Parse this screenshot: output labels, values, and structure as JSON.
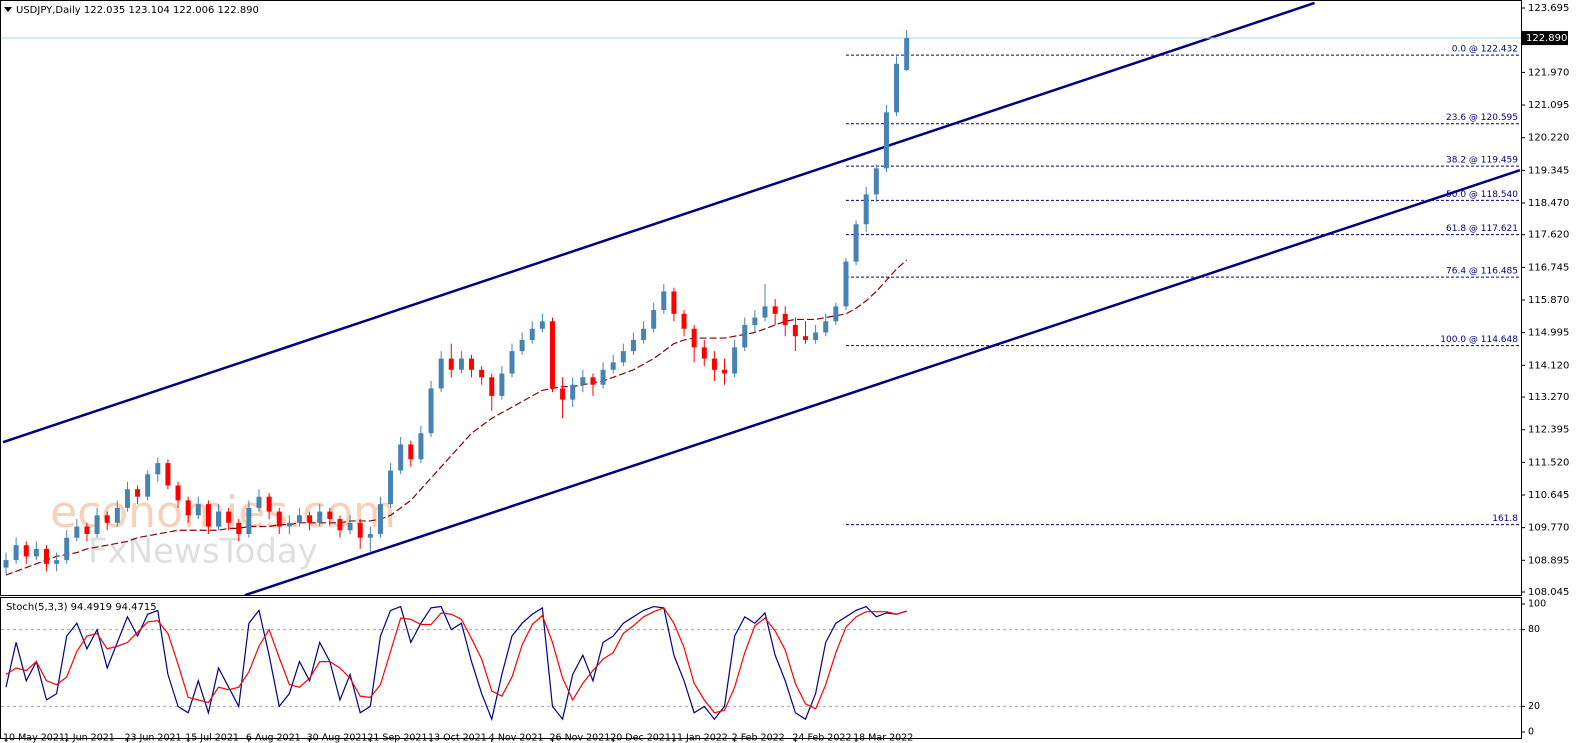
{
  "chart_data": {
    "type": "candlestick",
    "title": "USDJPY,Daily",
    "last_quote_labels": [
      "122.035",
      "123.104",
      "122.006",
      "122.890"
    ],
    "categories": [
      "10 May 2021",
      null,
      null,
      null,
      null,
      null,
      "1 Jun 2021",
      null,
      null,
      null,
      null,
      null,
      "23 Jun 2021",
      null,
      null,
      null,
      null,
      null,
      "15 Jul 2021",
      null,
      null,
      null,
      null,
      null,
      "6 Aug 2021",
      null,
      null,
      null,
      null,
      null,
      "30 Aug 2021",
      null,
      null,
      null,
      null,
      null,
      "21 Sep 2021",
      null,
      null,
      null,
      null,
      null,
      "13 Oct 2021",
      null,
      null,
      null,
      null,
      null,
      "4 Nov 2021",
      null,
      null,
      null,
      null,
      null,
      "26 Nov 2021",
      null,
      null,
      null,
      null,
      null,
      "20 Dec 2021",
      null,
      null,
      null,
      null,
      null,
      "11 Jan 2022",
      null,
      null,
      null,
      null,
      null,
      "2 Feb 2022",
      null,
      null,
      null,
      null,
      null,
      "24 Feb 2022",
      null,
      null,
      null,
      null,
      null,
      "18 Mar 2022",
      null,
      null,
      null,
      null,
      null
    ],
    "series": [
      {
        "name": "USDJPY",
        "up_color": "#4682b4",
        "down_color": "#ff0000",
        "values": [
          [
            108.7,
            109.1,
            108.5,
            108.9
          ],
          [
            108.9,
            109.5,
            108.8,
            109.3
          ],
          [
            109.3,
            109.4,
            108.8,
            109.0
          ],
          [
            109.0,
            109.4,
            108.9,
            109.2
          ],
          [
            109.2,
            109.3,
            108.6,
            108.8
          ],
          [
            108.8,
            109.1,
            108.6,
            108.9
          ],
          [
            108.9,
            109.7,
            108.8,
            109.5
          ],
          [
            109.5,
            110.0,
            109.4,
            109.8
          ],
          [
            109.8,
            109.9,
            109.4,
            109.6
          ],
          [
            109.6,
            110.3,
            109.5,
            110.1
          ],
          [
            110.1,
            110.2,
            109.7,
            109.9
          ],
          [
            109.9,
            110.5,
            109.8,
            110.3
          ],
          [
            110.3,
            111.0,
            110.2,
            110.8
          ],
          [
            110.8,
            110.9,
            110.4,
            110.6
          ],
          [
            110.6,
            111.3,
            110.5,
            111.2
          ],
          [
            111.2,
            111.65,
            111.0,
            111.5
          ],
          [
            111.5,
            111.6,
            110.8,
            110.9
          ],
          [
            110.9,
            111.0,
            110.3,
            110.5
          ],
          [
            110.5,
            110.6,
            109.9,
            110.1
          ],
          [
            110.1,
            110.6,
            110.0,
            110.4
          ],
          [
            110.4,
            110.5,
            109.6,
            109.8
          ],
          [
            109.8,
            110.4,
            109.7,
            110.2
          ],
          [
            110.2,
            110.3,
            109.7,
            109.9
          ],
          [
            109.9,
            110.0,
            109.4,
            109.6
          ],
          [
            109.6,
            110.5,
            109.5,
            110.3
          ],
          [
            110.3,
            110.8,
            110.2,
            110.6
          ],
          [
            110.6,
            110.7,
            110.0,
            110.2
          ],
          [
            110.2,
            110.3,
            109.6,
            109.8
          ],
          [
            109.8,
            110.1,
            109.6,
            109.9
          ],
          [
            109.9,
            110.3,
            109.8,
            110.1
          ],
          [
            110.1,
            110.2,
            109.7,
            109.9
          ],
          [
            109.9,
            110.4,
            109.8,
            110.2
          ],
          [
            110.2,
            110.3,
            109.8,
            110.0
          ],
          [
            110.0,
            110.1,
            109.5,
            109.7
          ],
          [
            109.7,
            110.1,
            109.6,
            109.9
          ],
          [
            109.9,
            110.0,
            109.2,
            109.5
          ],
          [
            109.5,
            109.8,
            109.1,
            109.6
          ],
          [
            109.6,
            110.6,
            109.5,
            110.4
          ],
          [
            110.4,
            111.5,
            110.3,
            111.3
          ],
          [
            111.3,
            112.2,
            111.2,
            112.0
          ],
          [
            112.0,
            112.1,
            111.4,
            111.6
          ],
          [
            111.6,
            112.5,
            111.5,
            112.3
          ],
          [
            112.3,
            113.7,
            112.2,
            113.5
          ],
          [
            113.5,
            114.5,
            113.4,
            114.3
          ],
          [
            114.3,
            114.7,
            113.8,
            114.0
          ],
          [
            114.0,
            114.5,
            113.9,
            114.3
          ],
          [
            114.3,
            114.4,
            113.8,
            114.0
          ],
          [
            114.0,
            114.1,
            113.6,
            113.8
          ],
          [
            113.8,
            113.9,
            112.9,
            113.3
          ],
          [
            113.3,
            114.1,
            113.2,
            113.9
          ],
          [
            113.9,
            114.7,
            113.8,
            114.5
          ],
          [
            114.5,
            115.0,
            114.4,
            114.8
          ],
          [
            114.8,
            115.3,
            114.7,
            115.1
          ],
          [
            115.1,
            115.5,
            115.0,
            115.3
          ],
          [
            115.3,
            115.4,
            113.4,
            113.5
          ],
          [
            113.5,
            113.8,
            112.7,
            113.2
          ],
          [
            113.2,
            113.8,
            113.0,
            113.6
          ],
          [
            113.6,
            114.0,
            113.4,
            113.8
          ],
          [
            113.8,
            113.9,
            113.3,
            113.6
          ],
          [
            113.6,
            114.2,
            113.5,
            114.0
          ],
          [
            114.0,
            114.4,
            113.9,
            114.2
          ],
          [
            114.2,
            114.7,
            114.1,
            114.5
          ],
          [
            114.5,
            115.0,
            114.4,
            114.8
          ],
          [
            114.8,
            115.3,
            114.7,
            115.1
          ],
          [
            115.1,
            115.8,
            115.0,
            115.6
          ],
          [
            115.6,
            116.3,
            115.5,
            116.1
          ],
          [
            116.1,
            116.2,
            115.3,
            115.5
          ],
          [
            115.5,
            115.6,
            114.9,
            115.1
          ],
          [
            115.1,
            115.2,
            114.2,
            114.6
          ],
          [
            114.6,
            114.8,
            114.1,
            114.3
          ],
          [
            114.3,
            114.5,
            113.7,
            114.0
          ],
          [
            114.0,
            114.3,
            113.6,
            113.9
          ],
          [
            113.9,
            114.8,
            113.8,
            114.6
          ],
          [
            114.6,
            115.4,
            114.5,
            115.2
          ],
          [
            115.2,
            115.6,
            115.0,
            115.4
          ],
          [
            115.4,
            116.3,
            115.3,
            115.7
          ],
          [
            115.7,
            115.9,
            115.2,
            115.5
          ],
          [
            115.5,
            115.7,
            114.9,
            115.2
          ],
          [
            115.2,
            115.4,
            114.5,
            114.9
          ],
          [
            114.9,
            115.3,
            114.7,
            114.8
          ],
          [
            114.8,
            115.2,
            114.7,
            115.0
          ],
          [
            115.0,
            115.5,
            114.9,
            115.3
          ],
          [
            115.3,
            115.8,
            115.2,
            115.7
          ],
          [
            115.7,
            117.0,
            115.6,
            116.9
          ],
          [
            116.9,
            118.0,
            116.8,
            117.9
          ],
          [
            117.9,
            118.9,
            117.7,
            118.7
          ],
          [
            118.7,
            119.5,
            118.5,
            119.4
          ],
          [
            119.4,
            121.1,
            119.3,
            120.9
          ],
          [
            120.9,
            122.4,
            120.8,
            122.2
          ],
          [
            122.035,
            123.104,
            122.006,
            122.89
          ]
        ]
      },
      {
        "name": "MA",
        "color": "#8b0000",
        "values": [
          108.5,
          108.6,
          108.7,
          108.8,
          108.9,
          109.0,
          109.05,
          109.1,
          109.2,
          109.25,
          109.3,
          109.35,
          109.4,
          109.5,
          109.55,
          109.6,
          109.65,
          109.7,
          109.7,
          109.7,
          109.7,
          109.7,
          109.75,
          109.75,
          109.8,
          109.8,
          109.8,
          109.85,
          109.85,
          109.9,
          109.9,
          109.9,
          109.9,
          109.9,
          109.95,
          109.95,
          109.95,
          110.0,
          110.1,
          110.3,
          110.5,
          110.8,
          111.1,
          111.4,
          111.7,
          112.0,
          112.3,
          112.5,
          112.7,
          112.85,
          113.0,
          113.15,
          113.3,
          113.45,
          113.5,
          113.55,
          113.55,
          113.6,
          113.65,
          113.7,
          113.8,
          113.9,
          114.0,
          114.15,
          114.3,
          114.5,
          114.7,
          114.8,
          114.85,
          114.85,
          114.85,
          114.85,
          114.9,
          114.95,
          115.0,
          115.1,
          115.2,
          115.3,
          115.35,
          115.35,
          115.35,
          115.4,
          115.45,
          115.5,
          115.65,
          115.85,
          116.1,
          116.4,
          116.7,
          116.94
        ]
      }
    ],
    "ylim": [
      107.965,
      123.91
    ],
    "yticks": [
      123.695,
      {
        "value": 121.97,
        "label": "121.970"
      },
      121.095,
      {
        "value": 120.22,
        "label": "120.220"
      },
      119.345,
      {
        "value": 118.47,
        "label": "118.470"
      },
      {
        "value": 117.62,
        "label": "117.620"
      },
      116.745,
      {
        "value": 115.87,
        "label": "115.870"
      },
      114.995,
      {
        "value": 114.12,
        "label": "114.120"
      },
      {
        "value": 113.27,
        "label": "113.270"
      },
      112.395,
      {
        "value": 111.52,
        "label": "111.520"
      },
      110.645,
      {
        "value": 109.77,
        "label": "109.770"
      },
      108.895,
      108.045
    ],
    "channels": [
      {
        "color": "#000080",
        "points": [
          [
            -0.3,
            112.06
          ],
          [
            129.3,
            123.83
          ]
        ]
      },
      {
        "color": "#000080",
        "points": [
          [
            23.6,
            107.96
          ],
          [
            149.6,
            119.35
          ]
        ]
      }
    ],
    "fibonacci": {
      "color": "#000080",
      "start": 83,
      "levels": [
        {
          "label": "0.0 @ 122.432",
          "price": 122.432
        },
        {
          "label": "23.6 @ 120.595",
          "price": 120.595
        },
        {
          "label": "38.2 @ 119.459",
          "price": 119.459
        },
        {
          "label": "50.0 @ 118.540",
          "price": 118.54
        },
        {
          "label": "61.8 @ 117.621",
          "price": 117.621
        },
        {
          "label": "76.4 @ 116.485",
          "price": 116.485
        },
        {
          "label": "100.0 @ 114.648",
          "price": 114.648
        },
        {
          "label": "161.8",
          "price": 109.85
        }
      ]
    },
    "watermark": [
      "economies.com",
      "FxNewsToday"
    ],
    "stochastic": {
      "title": "Stoch(5,3,3)",
      "ylim": [
        -4.7,
        104.7
      ],
      "yticks": [
        100,
        80,
        20,
        0
      ],
      "series": [
        {
          "name": "Main",
          "color": "#00008b",
          "values": [
            35,
            70,
            40,
            55,
            25,
            30,
            75,
            85,
            65,
            80,
            50,
            70,
            90,
            75,
            92,
            95,
            45,
            20,
            15,
            40,
            15,
            50,
            35,
            20,
            85,
            95,
            60,
            20,
            30,
            55,
            40,
            70,
            55,
            25,
            45,
            15,
            20,
            75,
            95,
            98,
            70,
            85,
            97,
            98,
            80,
            85,
            55,
            30,
            10,
            45,
            75,
            85,
            92,
            97,
            20,
            10,
            45,
            60,
            40,
            70,
            75,
            85,
            90,
            95,
            98,
            97,
            60,
            40,
            15,
            20,
            10,
            20,
            75,
            90,
            85,
            93,
            60,
            40,
            15,
            10,
            30,
            70,
            85,
            90,
            95,
            98,
            90,
            93,
            92,
            94.4919
          ]
        },
        {
          "name": "Signal",
          "color": "#ff0000",
          "values": [
            45,
            50,
            48,
            55,
            40,
            37,
            43,
            63,
            75,
            77,
            65,
            67,
            70,
            78,
            86,
            87,
            77,
            53,
            27,
            25,
            23,
            35,
            33,
            35,
            47,
            67,
            80,
            58,
            37,
            35,
            42,
            55,
            55,
            50,
            42,
            28,
            27,
            37,
            63,
            89,
            88,
            84,
            84,
            93,
            92,
            88,
            73,
            57,
            32,
            28,
            43,
            68,
            84,
            91,
            70,
            42,
            25,
            38,
            48,
            57,
            62,
            77,
            83,
            90,
            94,
            97,
            85,
            66,
            38,
            25,
            15,
            17,
            35,
            62,
            83,
            89,
            79,
            64,
            38,
            22,
            18,
            37,
            62,
            82,
            90,
            94,
            94,
            94,
            92,
            94.4715
          ]
        }
      ]
    }
  }
}
